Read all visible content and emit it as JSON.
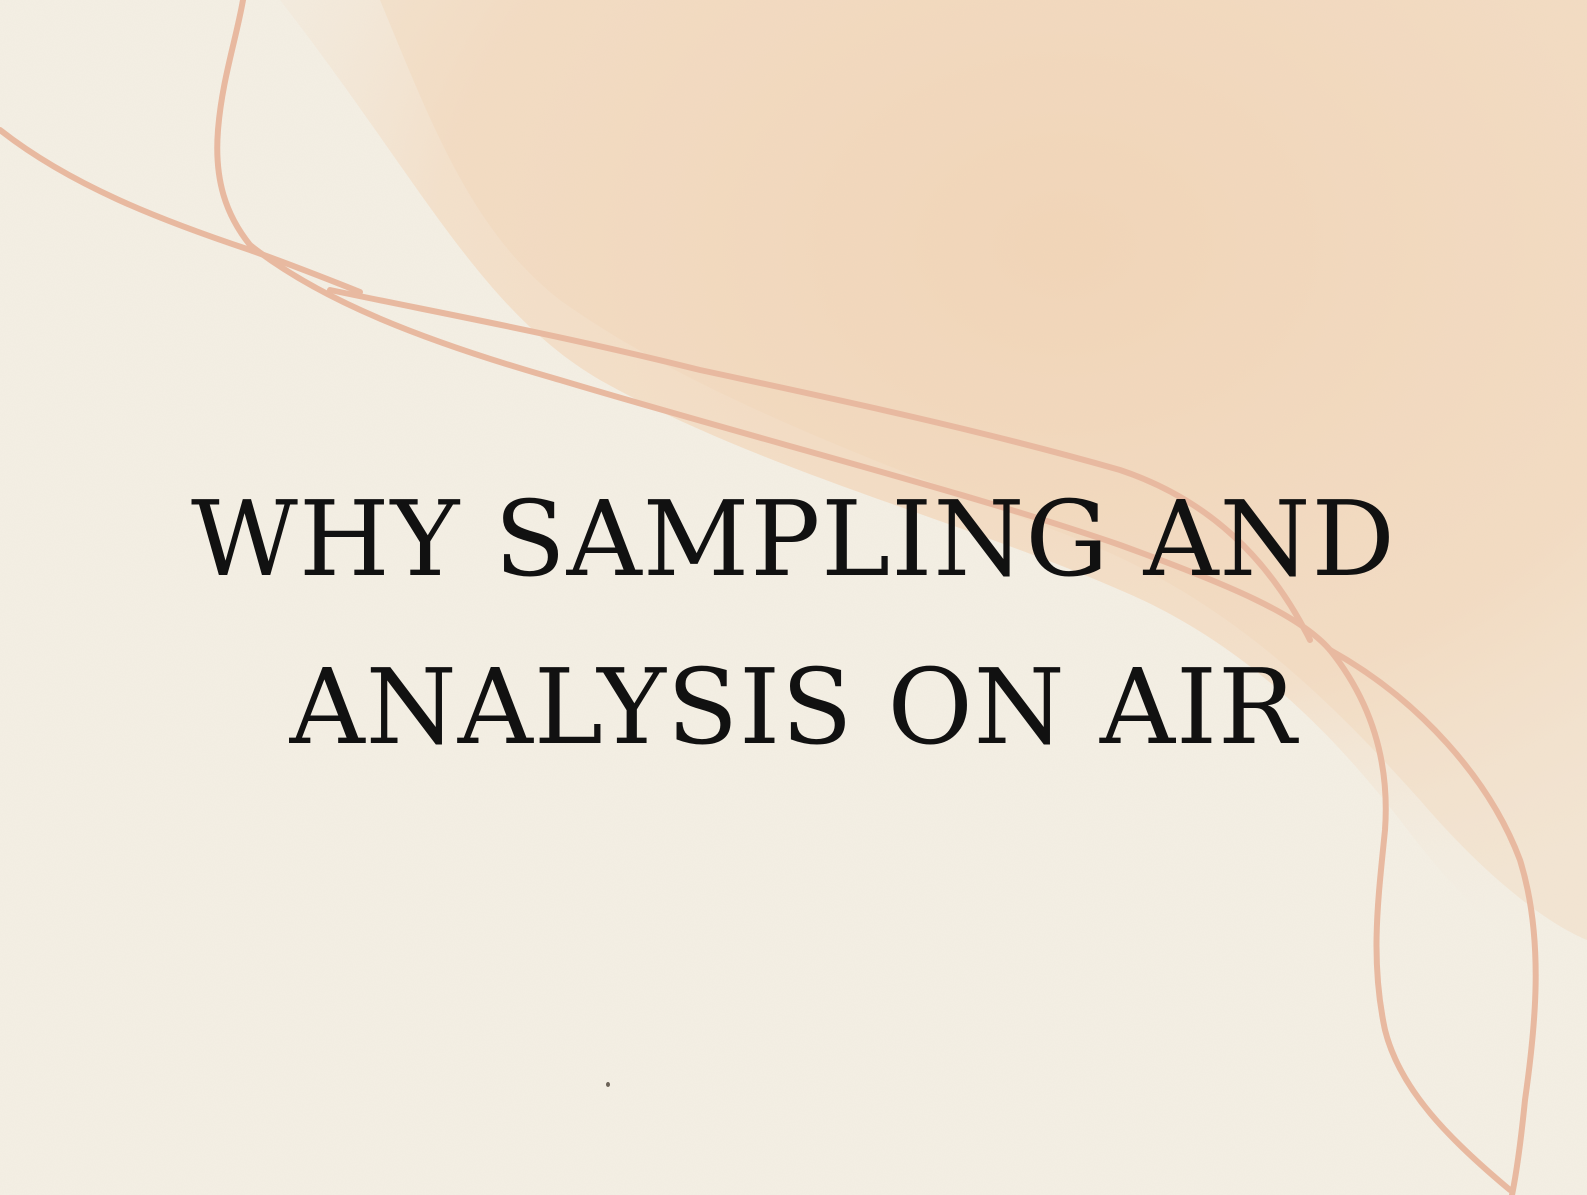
{
  "slide": {
    "title_line_1": "WHY SAMPLING AND",
    "title_line_2": "ANALYSIS ON AIR"
  },
  "colors": {
    "paper": "#f4efe4",
    "wash": "#f3d8bd",
    "line": "#e8b9a0",
    "text": "#111111"
  }
}
